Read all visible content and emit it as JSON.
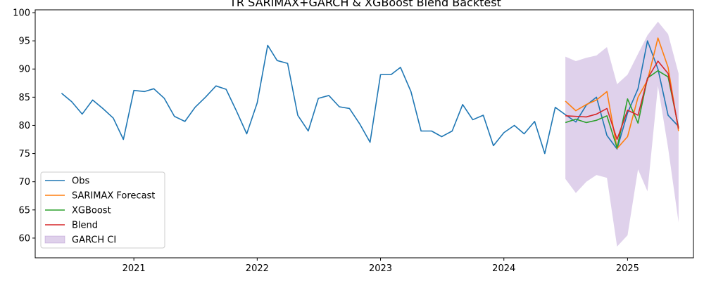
{
  "chart_data": {
    "type": "line",
    "title": "TR SARIMAX+GARCH & XGBoost Blend Backtest",
    "xlabel": "",
    "ylabel": "",
    "x_ticks": [
      "2021",
      "2022",
      "2023",
      "2024",
      "2025"
    ],
    "y_ticks": [
      60,
      65,
      70,
      75,
      80,
      85,
      90,
      95,
      100
    ],
    "xlim": [
      "2020-03-15",
      "2025-07-15"
    ],
    "ylim": [
      56.5,
      100.5
    ],
    "grid": false,
    "legend_position": "lower-left",
    "colors": {
      "obs": "#1f77b4",
      "sarimax": "#ff7f0e",
      "xgboost": "#2ca02c",
      "blend": "#d62728",
      "garch_fill": "#9467bd"
    },
    "legend": [
      {
        "key": "obs",
        "label": "Obs"
      },
      {
        "key": "sarimax",
        "label": "SARIMAX Forecast"
      },
      {
        "key": "xgboost",
        "label": "XGBoost"
      },
      {
        "key": "blend",
        "label": "Blend"
      },
      {
        "key": "garch",
        "label": "GARCH CI"
      }
    ],
    "observed": {
      "x": [
        "2020-06",
        "2020-07",
        "2020-08",
        "2020-09",
        "2020-10",
        "2020-11",
        "2020-12",
        "2021-01",
        "2021-02",
        "2021-03",
        "2021-04",
        "2021-05",
        "2021-06",
        "2021-07",
        "2021-08",
        "2021-09",
        "2021-10",
        "2021-11",
        "2021-12",
        "2022-01",
        "2022-02",
        "2022-03",
        "2022-04",
        "2022-05",
        "2022-06",
        "2022-07",
        "2022-08",
        "2022-09",
        "2022-10",
        "2022-11",
        "2022-12",
        "2023-01",
        "2023-02",
        "2023-03",
        "2023-04",
        "2023-05",
        "2023-06",
        "2023-07",
        "2023-08",
        "2023-09",
        "2023-10",
        "2023-11",
        "2023-12",
        "2024-01",
        "2024-02",
        "2024-03",
        "2024-04",
        "2024-05",
        "2024-06",
        "2024-07",
        "2024-08",
        "2024-09",
        "2024-10",
        "2024-11",
        "2024-12",
        "2025-01",
        "2025-02",
        "2025-03",
        "2025-04",
        "2025-05",
        "2025-06"
      ],
      "y": [
        85.7,
        84.2,
        82.0,
        84.5,
        83.0,
        81.3,
        77.5,
        86.2,
        86.0,
        86.5,
        84.8,
        81.6,
        80.7,
        83.2,
        85.0,
        87.0,
        86.4,
        82.5,
        78.5,
        84.0,
        94.2,
        91.5,
        91.0,
        81.8,
        79.0,
        84.8,
        85.3,
        83.3,
        83.0,
        80.2,
        77.0,
        89.0,
        89.0,
        90.3,
        86.0,
        79.0,
        79.0,
        78.0,
        79.0,
        83.7,
        81.0,
        81.8,
        76.4,
        78.7,
        80.0,
        78.5,
        80.7,
        75.0,
        83.2,
        81.9,
        80.6,
        83.6,
        85.0,
        78.2,
        75.8,
        82.2,
        86.5,
        95.0,
        90.0,
        81.8,
        79.8
      ]
    },
    "sarimax": {
      "x": [
        "2024-07",
        "2024-08",
        "2024-09",
        "2024-10",
        "2024-11",
        "2024-12",
        "2025-01",
        "2025-02",
        "2025-03",
        "2025-04",
        "2025-05",
        "2025-06"
      ],
      "y": [
        84.3,
        82.6,
        83.7,
        84.5,
        86.0,
        75.9,
        78.0,
        85.0,
        88.0,
        95.5,
        90.3,
        79.0
      ]
    },
    "xgboost": {
      "x": [
        "2024-07",
        "2024-08",
        "2024-09",
        "2024-10",
        "2024-11",
        "2024-12",
        "2025-01",
        "2025-02",
        "2025-03",
        "2025-04",
        "2025-05",
        "2025-06"
      ],
      "y": [
        80.5,
        81.1,
        80.5,
        80.9,
        81.7,
        76.0,
        84.7,
        80.4,
        88.4,
        89.7,
        88.6,
        79.6
      ]
    },
    "blend": {
      "x": [
        "2024-07",
        "2024-08",
        "2024-09",
        "2024-10",
        "2024-11",
        "2024-12",
        "2025-01",
        "2025-02",
        "2025-03",
        "2025-04",
        "2025-05",
        "2025-06"
      ],
      "y": [
        81.7,
        81.6,
        81.5,
        82.0,
        83.0,
        77.5,
        82.7,
        81.8,
        88.3,
        91.4,
        89.2,
        79.4
      ]
    },
    "garch_ci": {
      "x": [
        "2024-07",
        "2024-08",
        "2024-09",
        "2024-10",
        "2024-11",
        "2024-12",
        "2025-01",
        "2025-02",
        "2025-03",
        "2025-04",
        "2025-05",
        "2025-06"
      ],
      "lower": [
        70.5,
        68.0,
        70.0,
        71.2,
        70.7,
        58.5,
        60.5,
        72.2,
        68.3,
        87.0,
        76.0,
        62.8
      ],
      "upper": [
        92.2,
        91.4,
        92.0,
        92.4,
        93.9,
        87.3,
        89.0,
        92.7,
        96.0,
        98.4,
        96.2,
        89.2
      ]
    }
  }
}
